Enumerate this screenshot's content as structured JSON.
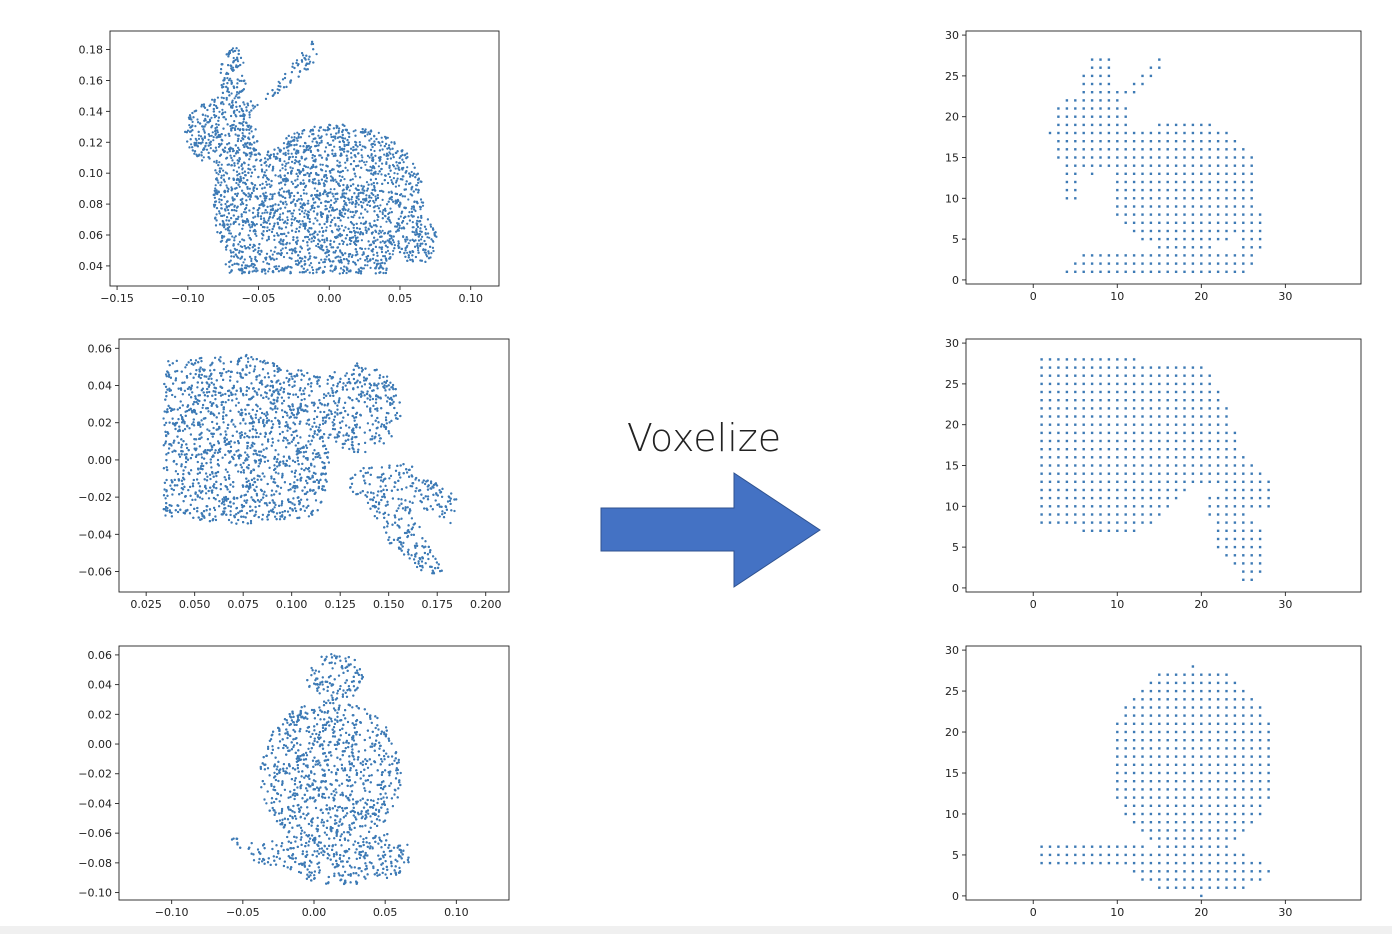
{
  "caption": "Voxelize",
  "chart_data": [
    {
      "type": "scatter",
      "view": "original-xy",
      "shape": "bunny-side",
      "xlim": [
        -0.155,
        0.12
      ],
      "ylim": [
        0.027,
        0.192
      ],
      "xticks": [
        -0.15,
        -0.1,
        -0.05,
        0.0,
        0.05,
        0.1
      ],
      "xtick_labels": [
        "−0.15",
        "−0.10",
        "−0.05",
        "0.00",
        "0.05",
        "0.10"
      ],
      "yticks": [
        0.04,
        0.06,
        0.08,
        0.1,
        0.12,
        0.14,
        0.16,
        0.18
      ],
      "ytick_labels": [
        "0.04",
        "0.06",
        "0.08",
        "0.10",
        "0.12",
        "0.14",
        "0.16",
        "0.18"
      ],
      "color": "#3d7ab5"
    },
    {
      "type": "scatter",
      "view": "original-top",
      "shape": "bunny-top",
      "xlim": [
        0.011,
        0.212
      ],
      "ylim": [
        -0.071,
        0.065
      ],
      "xticks": [
        0.025,
        0.05,
        0.075,
        0.1,
        0.125,
        0.15,
        0.175,
        0.2
      ],
      "xtick_labels": [
        "0.025",
        "0.050",
        "0.075",
        "0.100",
        "0.125",
        "0.150",
        "0.175",
        "0.200"
      ],
      "yticks": [
        -0.06,
        -0.04,
        -0.02,
        0.0,
        0.02,
        0.04,
        0.06
      ],
      "ytick_labels": [
        "−0.06",
        "−0.04",
        "−0.02",
        "0.00",
        "0.02",
        "0.04",
        "0.06"
      ],
      "color": "#3d7ab5"
    },
    {
      "type": "scatter",
      "view": "original-front",
      "shape": "bunny-front",
      "xlim": [
        -0.137,
        0.137
      ],
      "ylim": [
        -0.105,
        0.066
      ],
      "xticks": [
        -0.1,
        -0.05,
        0.0,
        0.05,
        0.1
      ],
      "xtick_labels": [
        "−0.10",
        "−0.05",
        "0.00",
        "0.05",
        "0.10"
      ],
      "yticks": [
        -0.1,
        -0.08,
        -0.06,
        -0.04,
        -0.02,
        0.0,
        0.02,
        0.04,
        0.06
      ],
      "ytick_labels": [
        "−0.10",
        "−0.08",
        "−0.06",
        "−0.04",
        "−0.02",
        "0.00",
        "0.02",
        "0.04",
        "0.06"
      ],
      "color": "#3d7ab5"
    },
    {
      "type": "scatter",
      "view": "voxel-side",
      "shape": "voxel-side",
      "xlim": [
        -8,
        39
      ],
      "ylim": [
        -0.5,
        30.5
      ],
      "xticks": [
        0,
        10,
        20,
        30
      ],
      "xtick_labels": [
        "0",
        "10",
        "20",
        "30"
      ],
      "yticks": [
        0,
        5,
        10,
        15,
        20,
        25,
        30
      ],
      "ytick_labels": [
        "0",
        "5",
        "10",
        "15",
        "20",
        "25",
        "30"
      ],
      "color": "#3d7ab5"
    },
    {
      "type": "scatter",
      "view": "voxel-top",
      "shape": "voxel-top",
      "xlim": [
        -8,
        39
      ],
      "ylim": [
        -0.5,
        30.5
      ],
      "xticks": [
        0,
        10,
        20,
        30
      ],
      "xtick_labels": [
        "0",
        "10",
        "20",
        "30"
      ],
      "yticks": [
        0,
        5,
        10,
        15,
        20,
        25,
        30
      ],
      "ytick_labels": [
        "0",
        "5",
        "10",
        "15",
        "20",
        "25",
        "30"
      ],
      "color": "#3d7ab5"
    },
    {
      "type": "scatter",
      "view": "voxel-front",
      "shape": "voxel-front",
      "xlim": [
        -8,
        39
      ],
      "ylim": [
        -0.5,
        30.5
      ],
      "xticks": [
        0,
        10,
        20,
        30
      ],
      "xtick_labels": [
        "0",
        "10",
        "20",
        "30"
      ],
      "yticks": [
        0,
        5,
        10,
        15,
        20,
        25,
        30
      ],
      "ytick_labels": [
        "0",
        "5",
        "10",
        "15",
        "20",
        "25",
        "30"
      ],
      "color": "#3d7ab5"
    }
  ],
  "arrow": {
    "color": "#4472c4",
    "stroke": "#2f528f"
  }
}
